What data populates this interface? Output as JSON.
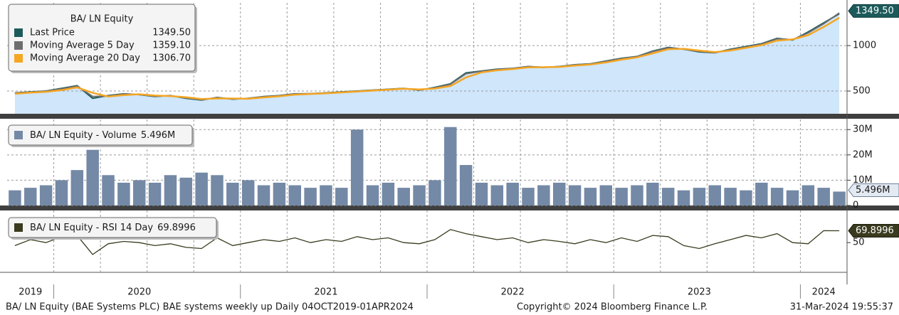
{
  "chart_data": [
    {
      "type": "area",
      "legend_title": "BA/ LN Equity",
      "ylim": [
        250,
        1470
      ],
      "yticks": [
        500,
        1000
      ],
      "grid": true,
      "series": [
        {
          "name": "Last Price",
          "color": "#1d5b5b",
          "fill": "#cfe6fb",
          "legend_value": {
            "value": 1349.5,
            "label": "1349.50"
          },
          "values": [
            480,
            490,
            500,
            530,
            560,
            420,
            450,
            470,
            460,
            440,
            450,
            420,
            400,
            430,
            410,
            420,
            440,
            450,
            470,
            470,
            480,
            490,
            500,
            510,
            520,
            530,
            510,
            540,
            580,
            700,
            720,
            740,
            750,
            770,
            760,
            770,
            790,
            800,
            830,
            860,
            880,
            940,
            980,
            960,
            930,
            920,
            960,
            990,
            1020,
            1080,
            1060,
            1150,
            1250,
            1349.5
          ]
        },
        {
          "name": "Moving Average 5 Day",
          "color": "#6d6d6d",
          "legend_value": {
            "value": 1359.1,
            "label": "1359.10"
          },
          "values": [
            478,
            488,
            498,
            525,
            555,
            440,
            445,
            468,
            462,
            442,
            448,
            425,
            405,
            428,
            412,
            418,
            438,
            448,
            468,
            472,
            478,
            488,
            498,
            508,
            518,
            528,
            512,
            535,
            575,
            690,
            718,
            738,
            748,
            768,
            762,
            768,
            788,
            798,
            826,
            856,
            878,
            935,
            975,
            962,
            935,
            922,
            955,
            985,
            1015,
            1075,
            1065,
            1140,
            1240,
            1359.1
          ]
        },
        {
          "name": "Moving Average 20 Day",
          "color": "#f5a623",
          "legend_value": {
            "value": 1306.7,
            "label": "1306.70"
          },
          "values": [
            470,
            482,
            492,
            510,
            540,
            480,
            440,
            455,
            465,
            450,
            445,
            432,
            412,
            418,
            418,
            415,
            430,
            442,
            460,
            468,
            475,
            485,
            495,
            505,
            515,
            525,
            518,
            528,
            555,
            650,
            705,
            728,
            742,
            760,
            762,
            765,
            780,
            792,
            815,
            845,
            870,
            915,
            960,
            965,
            945,
            928,
            945,
            975,
            1005,
            1055,
            1068,
            1115,
            1205,
            1306.7
          ]
        }
      ]
    },
    {
      "type": "bar",
      "name": "BA/ LN Equity - Volume",
      "color": "#7489a6",
      "legend_value": {
        "value": 5496000,
        "label": "5.496M"
      },
      "ylim": [
        0,
        34000000
      ],
      "yticks": [
        0,
        {
          "value": 10000000,
          "label": "10M"
        },
        {
          "value": 20000000,
          "label": "20M"
        },
        {
          "value": 30000000,
          "label": "30M"
        }
      ],
      "grid": true,
      "values": [
        6000000,
        7000000,
        8000000,
        10000000,
        14000000,
        22000000,
        12000000,
        9000000,
        10000000,
        9000000,
        12000000,
        11000000,
        13000000,
        12000000,
        9000000,
        10000000,
        8000000,
        9000000,
        8000000,
        7000000,
        8000000,
        7000000,
        30000000,
        8000000,
        9000000,
        7000000,
        8000000,
        10000000,
        31000000,
        16000000,
        9000000,
        8000000,
        9000000,
        7000000,
        8000000,
        9000000,
        8000000,
        7000000,
        8000000,
        7000000,
        8000000,
        9000000,
        7000000,
        6000000,
        7000000,
        8000000,
        7000000,
        6000000,
        9000000,
        7000000,
        6000000,
        8000000,
        7000000,
        5496000
      ]
    },
    {
      "type": "line",
      "name": "BA/ LN Equity - RSI 14 Day",
      "color": "#3a3a1f",
      "legend_value": 69.8996,
      "ylim": [
        0,
        104
      ],
      "yticks": [
        50
      ],
      "grid": false,
      "categories": [
        null,
        "2019",
        null,
        null,
        null,
        null,
        null,
        null,
        "2020",
        null,
        null,
        null,
        null,
        null,
        null,
        null,
        null,
        null,
        null,
        null,
        "2021",
        null,
        null,
        null,
        null,
        null,
        null,
        null,
        null,
        null,
        null,
        null,
        "2022",
        null,
        null,
        null,
        null,
        null,
        null,
        null,
        null,
        null,
        null,
        null,
        "2023",
        null,
        null,
        null,
        null,
        null,
        null,
        null,
        "2024",
        null
      ],
      "values": [
        45,
        55,
        50,
        60,
        62,
        30,
        48,
        52,
        50,
        45,
        48,
        42,
        40,
        58,
        45,
        50,
        55,
        52,
        58,
        50,
        55,
        52,
        60,
        55,
        58,
        50,
        48,
        55,
        72,
        65,
        60,
        55,
        58,
        50,
        55,
        52,
        48,
        55,
        50,
        58,
        52,
        62,
        60,
        45,
        40,
        48,
        55,
        62,
        58,
        65,
        50,
        48,
        70,
        69.8996
      ]
    }
  ],
  "footer": {
    "left": "BA/ LN Equity (BAE Systems PLC) BAE systems weekly up  Daily 04OCT2019-01APR2024",
    "center": "Copyright© 2024 Bloomberg Finance L.P.",
    "right": "31-Mar-2024 19:55:37"
  }
}
